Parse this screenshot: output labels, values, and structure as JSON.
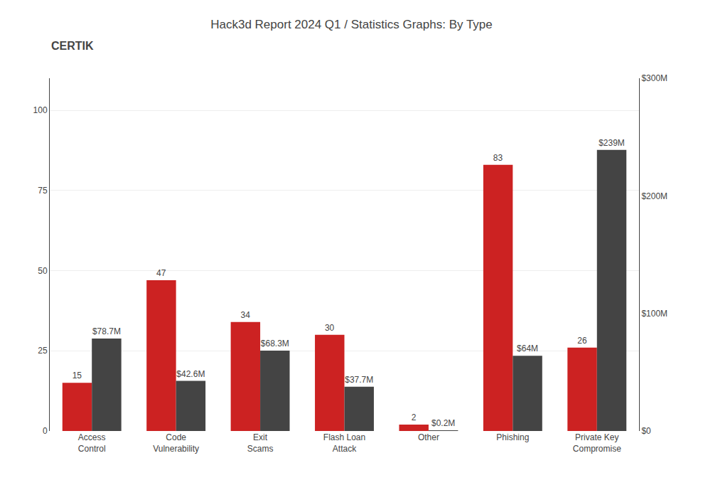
{
  "chart_data": {
    "type": "bar",
    "title": "Hack3d Report 2024 Q1 / Statistics Graphs: By Type",
    "annotations": [
      "CERTIK"
    ],
    "categories": [
      "Access\nControl",
      "Code\nVulnerability",
      "Exit\nScams",
      "Flash Loan\nAttack",
      "Other",
      "Phishing",
      "Private Key\nCompromise"
    ],
    "series": [
      {
        "color": "#cc2222",
        "values": [
          15,
          47,
          34,
          30,
          2,
          83,
          26
        ]
      },
      {
        "color": "#444444",
        "axis": "y2",
        "values": [
          78.7,
          42.6,
          68.3,
          37.7,
          0.2,
          64,
          239
        ],
        "value_labels": [
          "$78.7M",
          "$42.6M",
          "$68.3M",
          "$37.7M",
          "$0.2M",
          "$64M",
          "$239M"
        ]
      }
    ],
    "ylim": [
      0,
      110
    ],
    "yticks": [
      0,
      25,
      50,
      75,
      100
    ],
    "y2lim": [
      0,
      300
    ],
    "y2ticks": [
      {
        "value": 0,
        "label": "$0"
      },
      {
        "value": 100,
        "label": "$100M"
      },
      {
        "value": 200,
        "label": "$200M"
      },
      {
        "value": 300,
        "label": "$300M"
      }
    ],
    "grid": true,
    "data_labels": true
  }
}
